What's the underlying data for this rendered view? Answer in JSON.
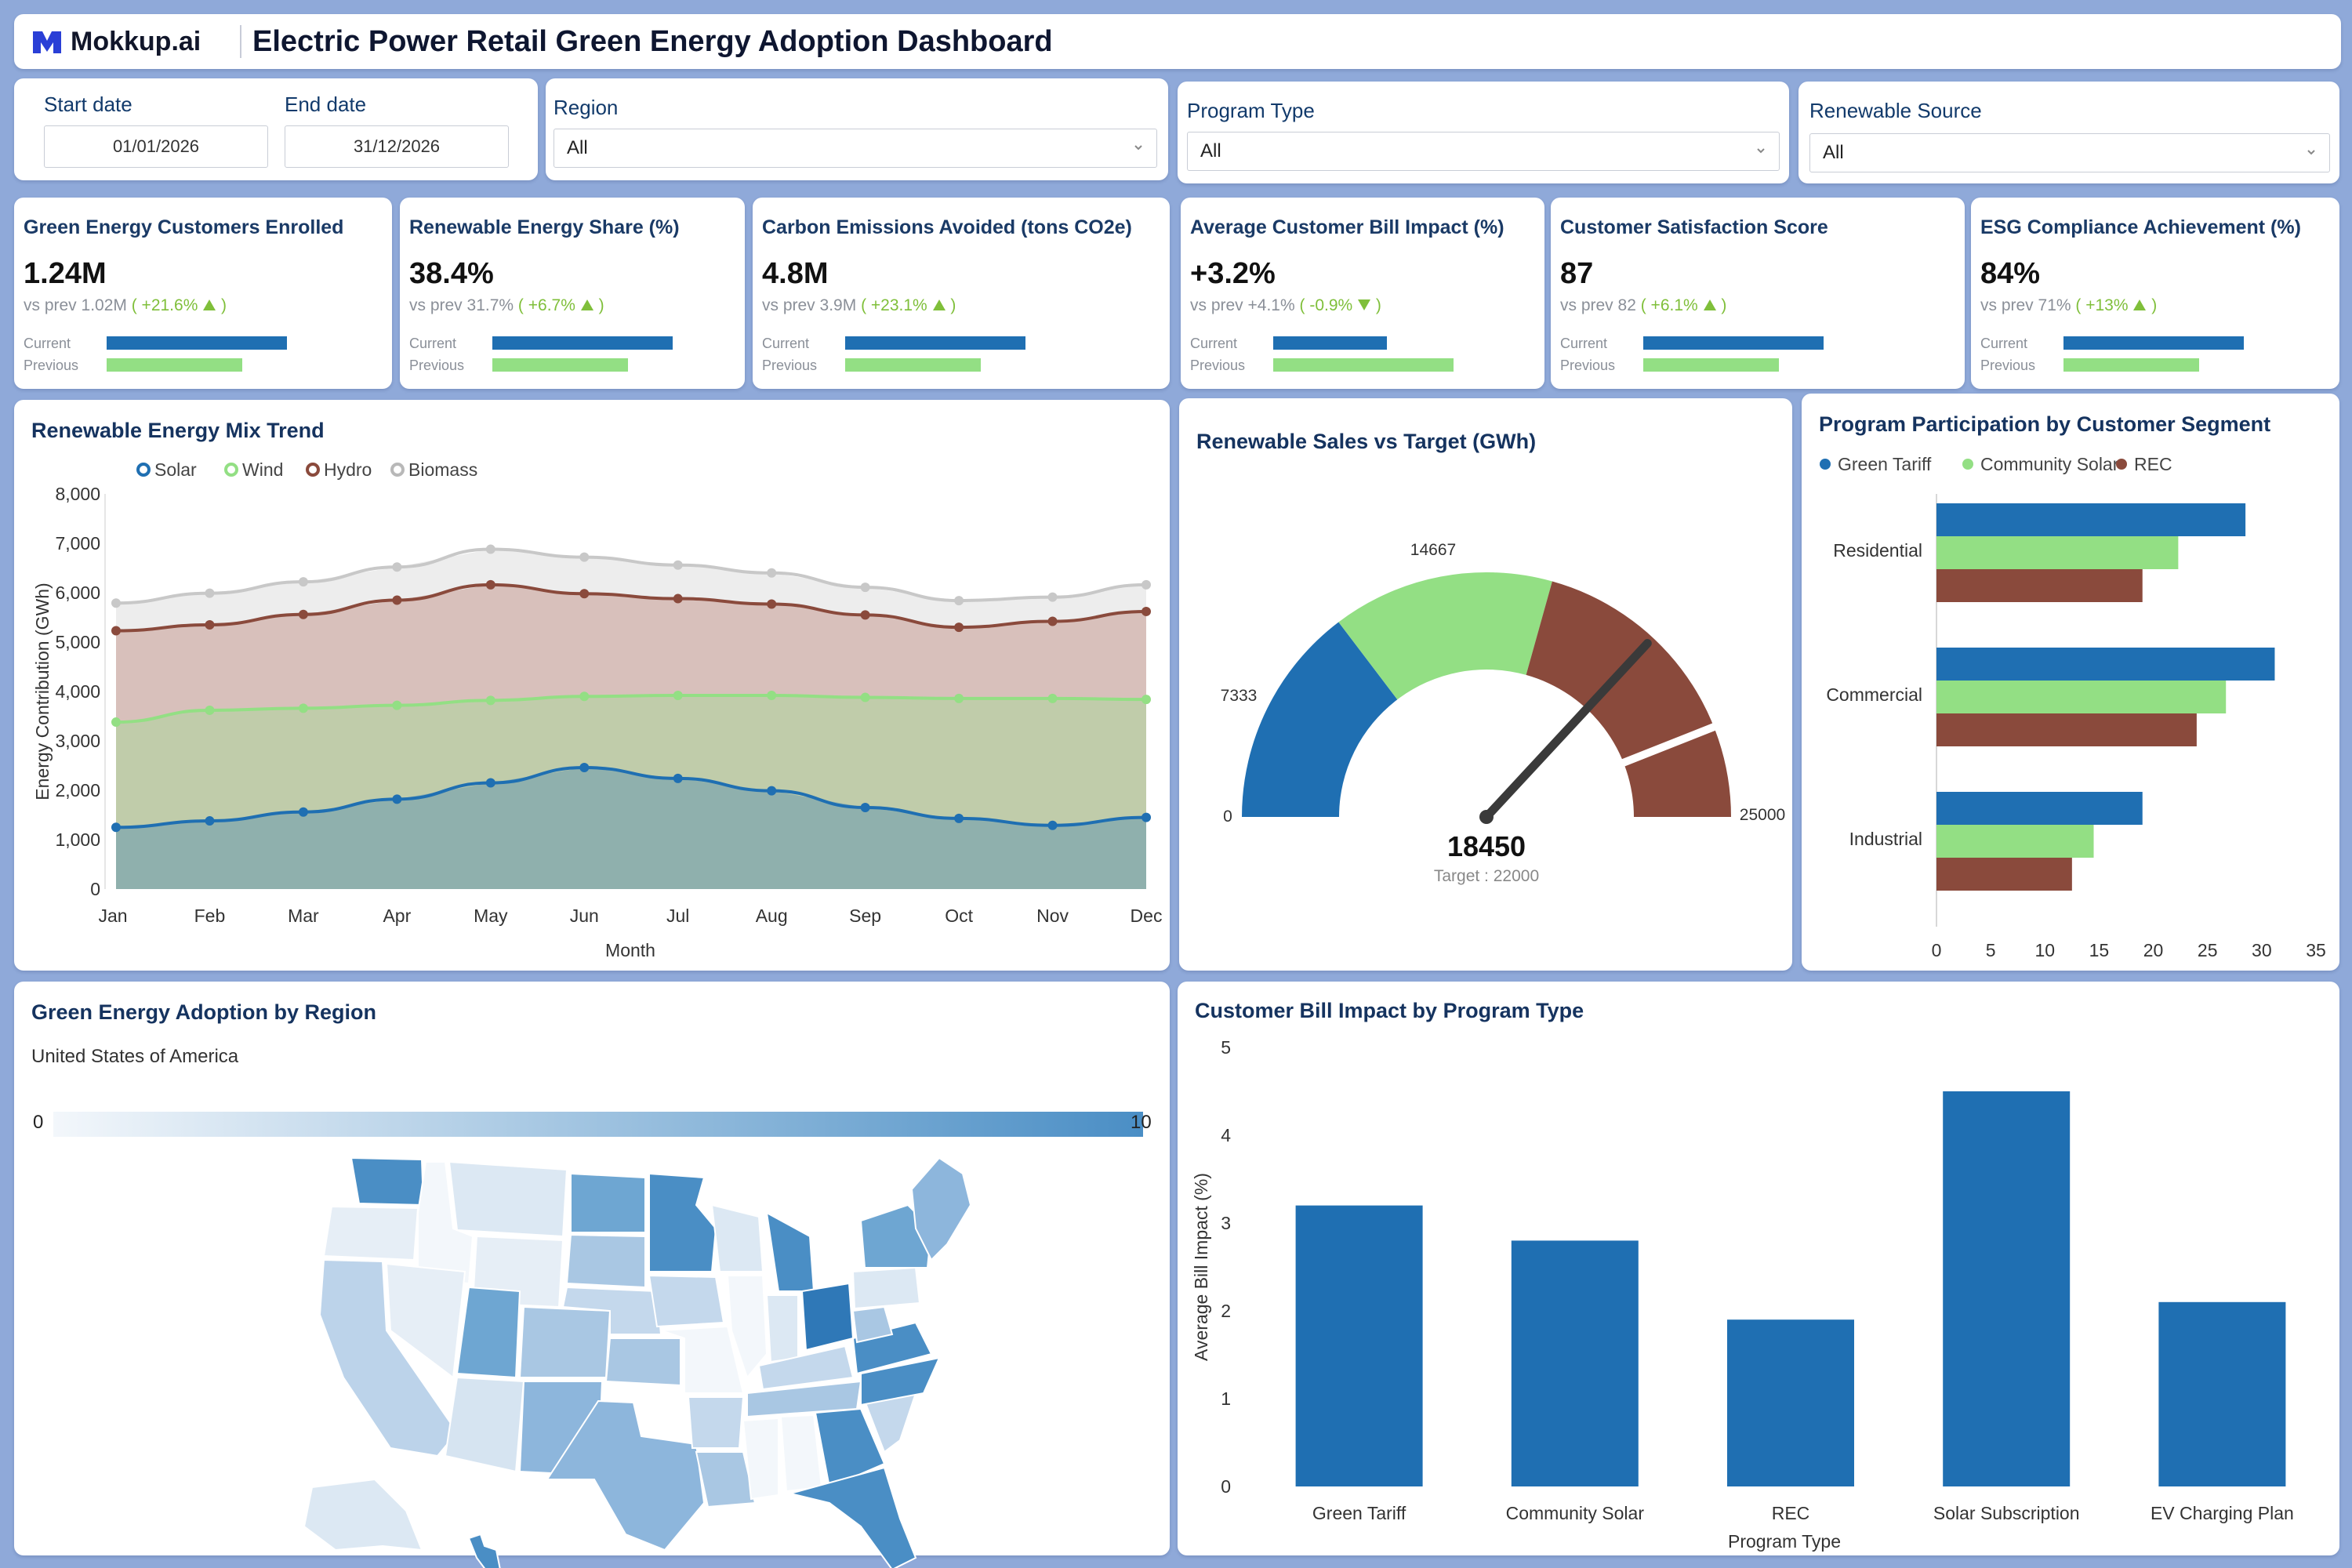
{
  "header": {
    "logo_text": "Mokkup.ai",
    "title": "Electric Power Retail Green Energy Adoption Dashboard"
  },
  "filters": {
    "start_date_label": "Start date",
    "start_date_value": "01/01/2026",
    "end_date_label": "End date",
    "end_date_value": "31/12/2026",
    "region_label": "Region",
    "region_value": "All",
    "program_type_label": "Program Type",
    "program_type_value": "All",
    "renewable_source_label": "Renewable Source",
    "renewable_source_value": "All"
  },
  "kpis": [
    {
      "title": "Green Energy Customers Enrolled",
      "value": "1.24M",
      "prev_text": "vs prev 1.02M",
      "delta": "( +21.6%",
      "direction": "up",
      "current_label": "Current",
      "previous_label": "Previous",
      "current_ratio": 1.0,
      "previous_ratio": 0.75
    },
    {
      "title": "Renewable Energy Share (%)",
      "value": "38.4%",
      "prev_text": "vs prev 31.7%",
      "delta": "( +6.7%",
      "direction": "up",
      "current_label": "Current",
      "previous_label": "Previous",
      "current_ratio": 1.0,
      "previous_ratio": 0.75
    },
    {
      "title": "Carbon Emissions Avoided (tons CO2e)",
      "value": "4.8M",
      "prev_text": "vs prev 3.9M",
      "delta": "( +23.1%",
      "direction": "up",
      "current_label": "Current",
      "previous_label": "Previous",
      "current_ratio": 1.0,
      "previous_ratio": 0.75
    },
    {
      "title": "Average Customer Bill Impact (%)",
      "value": "+3.2%",
      "prev_text": "vs prev +4.1%",
      "delta": "( -0.9%",
      "direction": "down",
      "current_label": "Current",
      "previous_label": "Previous",
      "current_ratio": 0.63,
      "previous_ratio": 1.0
    },
    {
      "title": "Customer Satisfaction Score",
      "value": "87",
      "prev_text": "vs prev 82",
      "delta": "( +6.1%",
      "direction": "up",
      "current_label": "Current",
      "previous_label": "Previous",
      "current_ratio": 1.0,
      "previous_ratio": 0.75
    },
    {
      "title": "ESG Compliance Achievement (%)",
      "value": "84%",
      "prev_text": "vs prev 71%",
      "delta": "( +13%",
      "direction": "up",
      "current_label": "Current",
      "previous_label": "Previous",
      "current_ratio": 1.0,
      "previous_ratio": 0.75
    }
  ],
  "mix_trend": {
    "title": "Renewable Energy Mix Trend",
    "chart_data": {
      "type": "area",
      "stacked": true,
      "x": [
        "Jan",
        "Feb",
        "Mar",
        "Apr",
        "May",
        "Jun",
        "Jul",
        "Aug",
        "Sep",
        "Oct",
        "Nov",
        "Dec"
      ],
      "xlabel": "Month",
      "ylabel": "Energy Contribution (GWh)",
      "ylim": [
        0,
        8000
      ],
      "yticks": [
        "0",
        "1,000",
        "2,000",
        "3,000",
        "4,000",
        "5,000",
        "6,000",
        "7,000",
        "8,000"
      ],
      "series": [
        {
          "name": "Solar",
          "color": "#1f6fb2",
          "values": [
            1250,
            1380,
            1560,
            1820,
            2150,
            2460,
            2240,
            1990,
            1650,
            1430,
            1290,
            1450
          ]
        },
        {
          "name": "Wind",
          "color": "#93df84",
          "values": [
            3380,
            3620,
            3660,
            3720,
            3820,
            3900,
            3920,
            3920,
            3880,
            3860,
            3860,
            3840
          ]
        },
        {
          "name": "Hydro",
          "color": "#8a4a3c",
          "values": [
            5230,
            5350,
            5560,
            5850,
            6160,
            5980,
            5880,
            5770,
            5550,
            5300,
            5420,
            5620
          ]
        },
        {
          "name": "Biomass",
          "color": "#c8c8c8",
          "values": [
            5790,
            5990,
            6220,
            6520,
            6880,
            6720,
            6560,
            6400,
            6110,
            5840,
            5910,
            6160
          ]
        }
      ]
    }
  },
  "gauge": {
    "title": "Renewable Sales vs Target (GWh)",
    "value_text": "18450",
    "target_text": "Target : 22000",
    "chart_data": {
      "type": "gauge",
      "min": 0,
      "max": 25000,
      "value": 18450,
      "target": 22000,
      "ticks": [
        "0",
        "7333",
        "14667",
        "25000"
      ],
      "bands": [
        {
          "from": 0,
          "to": 7333,
          "color": "#1f6fb2"
        },
        {
          "from": 7333,
          "to": 14667,
          "color": "#93df84"
        },
        {
          "from": 14667,
          "to": 25000,
          "color": "#8a4a3c"
        }
      ]
    }
  },
  "participation": {
    "title": "Program Participation by Customer Segment",
    "chart_data": {
      "type": "bar",
      "orientation": "horizontal",
      "categories": [
        "Residential",
        "Commercial",
        "Industrial"
      ],
      "xlim": [
        0,
        35
      ],
      "xticks": [
        "0",
        "5",
        "10",
        "15",
        "20",
        "25",
        "30",
        "35"
      ],
      "series": [
        {
          "name": "Green Tariff",
          "color": "#1f6fb2",
          "values": [
            28.5,
            31.2,
            19.0
          ]
        },
        {
          "name": "Community Solar",
          "color": "#93df84",
          "values": [
            22.3,
            26.7,
            14.5
          ]
        },
        {
          "name": "REC",
          "color": "#8a4a3c",
          "values": [
            19.0,
            24.0,
            12.5
          ]
        }
      ]
    }
  },
  "region_map": {
    "title": "Green Energy Adoption by Region",
    "subtitle": "United States of America",
    "scale_min": "0",
    "scale_max": "10"
  },
  "bill_impact": {
    "title": "Customer Bill Impact by Program Type",
    "chart_data": {
      "type": "bar",
      "categories": [
        "Green Tariff",
        "Community Solar",
        "REC",
        "Solar Subscription",
        "EV Charging Plan"
      ],
      "values": [
        3.2,
        2.8,
        1.9,
        4.5,
        2.1
      ],
      "xlabel": "Program Type",
      "ylabel": "Average Bill Impact (%)",
      "ylim": [
        0,
        5
      ],
      "yticks": [
        "0",
        "1",
        "2",
        "3",
        "4",
        "5"
      ],
      "color": "#1f6fb2"
    }
  }
}
